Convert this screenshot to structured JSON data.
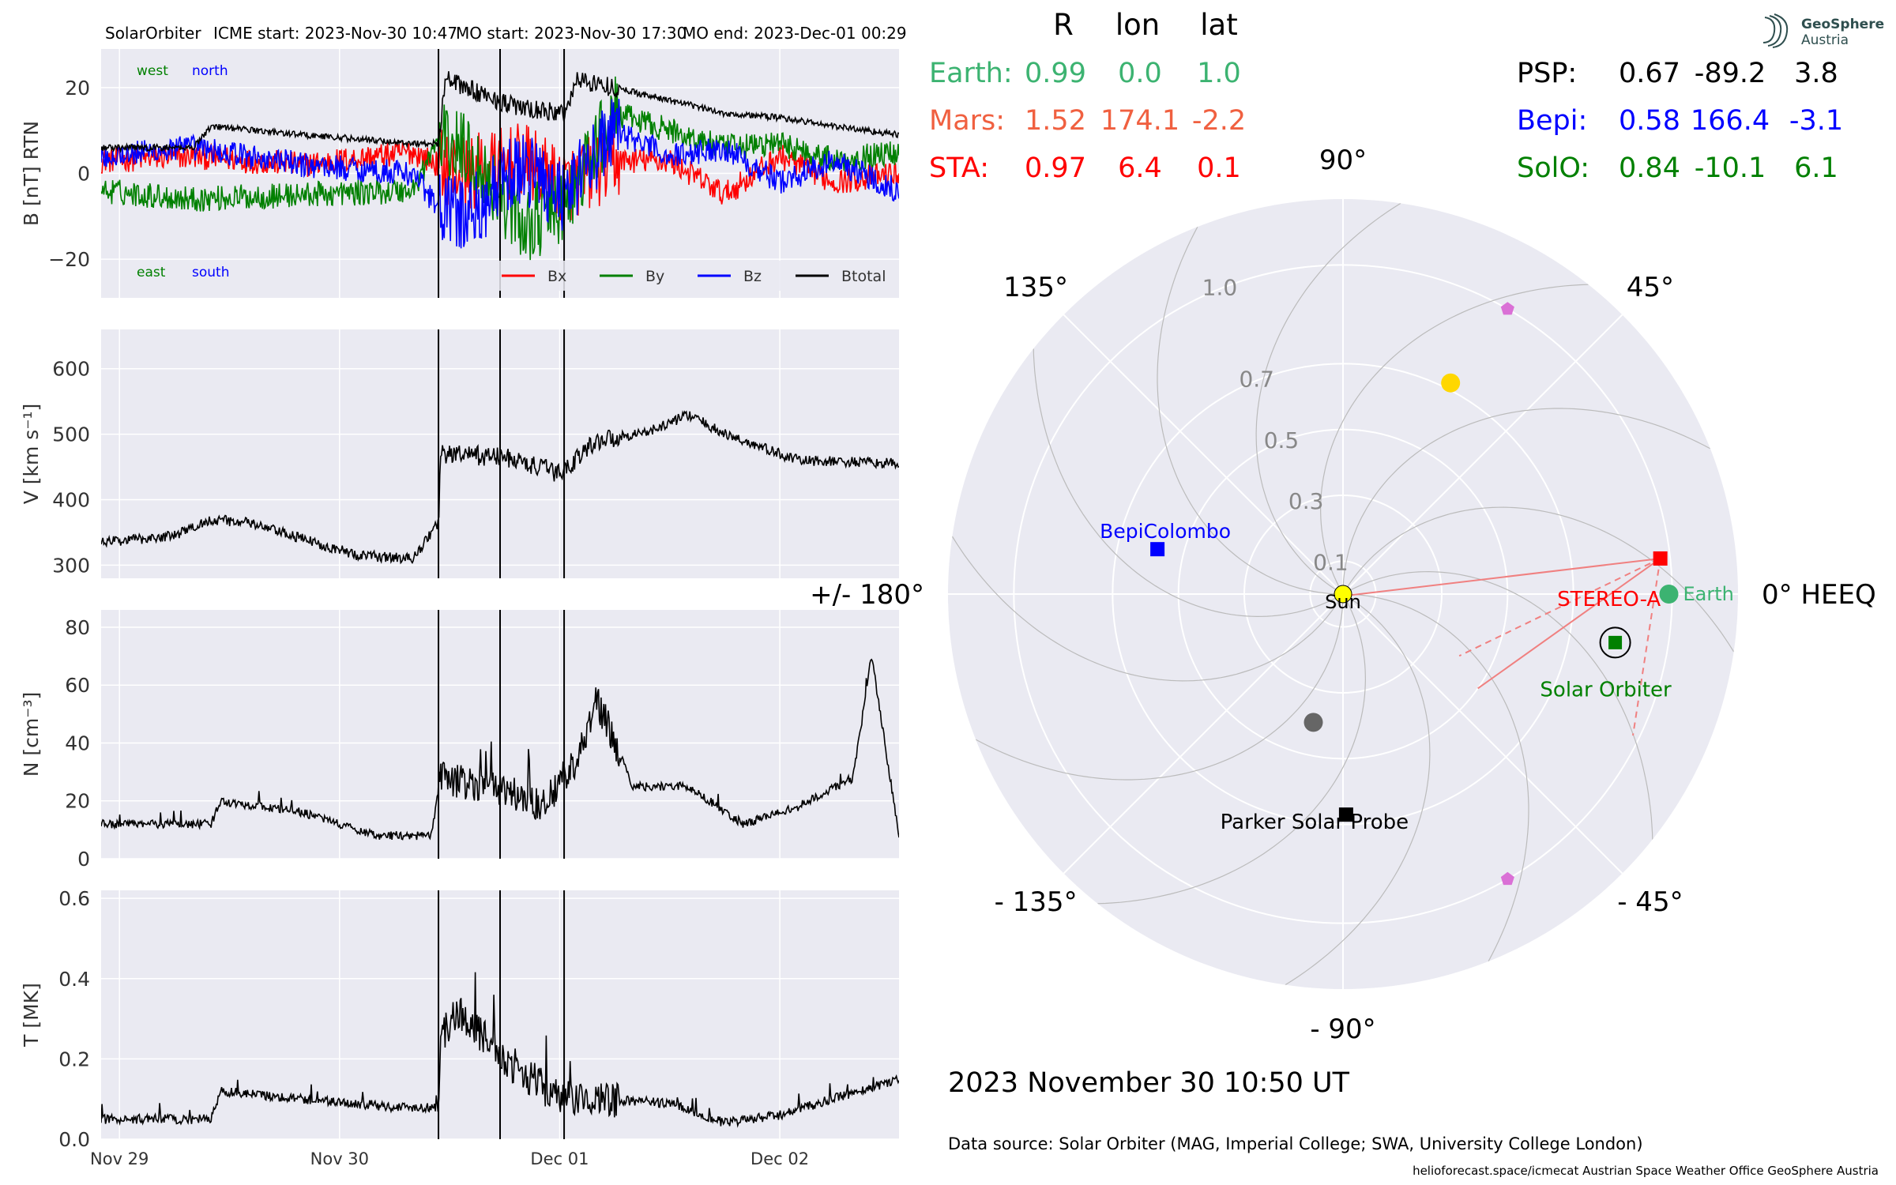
{
  "header": {
    "spacecraft": "SolarOrbiter",
    "icme_start": "ICME start: 2023-Nov-30 10:47",
    "mo_start": "MO start: 2023-Nov-30 17:30",
    "mo_end": "MO end: 2023-Dec-01 00:29"
  },
  "logo": {
    "line1": "GeoSphere",
    "line2": "Austria"
  },
  "footer": {
    "timestamp": "2023 November 30  10:50 UT",
    "source": "Data source: Solar Orbiter (MAG, Imperial College; SWA, University College London)",
    "credits": "helioforecast.space/icmecat   Austrian Space Weather Office   GeoSphere Austria"
  },
  "colors": {
    "earth": "#3cb371",
    "mars": "#f06040",
    "sta": "#ff0000",
    "psp": "#000000",
    "bepi": "#0000ff",
    "solo": "#008000",
    "panel_bg": "#eaeaf2",
    "grid": "#ffffff",
    "bx": "#ff0000",
    "by": "#008000",
    "bz": "#0000ff",
    "btotal": "#000000",
    "venus": "#ffd700",
    "mercury": "#666666",
    "l5": "#da70d6"
  },
  "positions_table": {
    "headers": [
      "R",
      "lon",
      "lat"
    ],
    "left": [
      {
        "name": "Earth:",
        "r": "0.99",
        "lon": "0.0",
        "lat": "1.0",
        "color": "#3cb371"
      },
      {
        "name": "Mars:",
        "r": "1.52",
        "lon": "174.1",
        "lat": "-2.2",
        "color": "#f06040"
      },
      {
        "name": "STA:",
        "r": "0.97",
        "lon": "6.4",
        "lat": "0.1",
        "color": "#ff0000"
      }
    ],
    "right": [
      {
        "name": "PSP:",
        "r": "0.67",
        "lon": "-89.2",
        "lat": "3.8",
        "color": "#000000"
      },
      {
        "name": "Bepi:",
        "r": "0.58",
        "lon": "166.4",
        "lat": "-3.1",
        "color": "#0000ff"
      },
      {
        "name": "SolO:",
        "r": "0.84",
        "lon": "-10.1",
        "lat": "6.1",
        "color": "#008000"
      }
    ]
  },
  "chart_data": [
    {
      "type": "line",
      "ylabel": "B [nT] RTN",
      "ylim": [
        -29,
        29
      ],
      "yticks": [
        -20,
        0,
        20
      ],
      "ytick_labels": [
        "−20",
        "0",
        "20"
      ],
      "xlim": [
        "2023-11-28 22:00",
        "2023-12-02 13:00"
      ],
      "xticks": [
        "2023-11-29",
        "2023-11-30",
        "2023-12-01",
        "2023-12-02"
      ],
      "xtick_labels": [
        "Nov 29",
        "Nov 30",
        "Dec 01",
        "Dec 02"
      ],
      "vlines": [
        "2023-11-30 10:47",
        "2023-11-30 17:30",
        "2023-12-01 00:29"
      ],
      "annotations": [
        "west",
        "north",
        "east",
        "south"
      ],
      "legend": "bottom-right",
      "series": [
        {
          "name": "Bx",
          "color": "#ff0000",
          "x": [
            "2023-11-28 22:00",
            "2023-11-29 08:00",
            "2023-11-29 20:00",
            "2023-11-30 08:00",
            "2023-11-30 10:47",
            "2023-11-30 14:00",
            "2023-11-30 20:00",
            "2023-12-01 00:29",
            "2023-12-01 06:00",
            "2023-12-01 12:00",
            "2023-12-01 18:00",
            "2023-12-02 00:00",
            "2023-12-02 06:00",
            "2023-12-02 13:00"
          ],
          "y": [
            3,
            4,
            2,
            5,
            2,
            0,
            3,
            -3,
            3,
            3,
            -5,
            4,
            -2,
            0
          ]
        },
        {
          "name": "By",
          "color": "#008000",
          "x": [
            "2023-11-28 22:00",
            "2023-11-29 08:00",
            "2023-11-29 20:00",
            "2023-11-30 08:00",
            "2023-11-30 10:47",
            "2023-11-30 14:00",
            "2023-11-30 20:00",
            "2023-12-01 00:29",
            "2023-12-01 06:00",
            "2023-12-01 12:00",
            "2023-12-01 18:00",
            "2023-12-02 00:00",
            "2023-12-02 06:00",
            "2023-12-02 13:00"
          ],
          "y": [
            -4,
            -6,
            -5,
            -4,
            8,
            5,
            -12,
            -8,
            14,
            10,
            6,
            7,
            3,
            5
          ]
        },
        {
          "name": "Bz",
          "color": "#0000ff",
          "x": [
            "2023-11-28 22:00",
            "2023-11-29 08:00",
            "2023-11-29 20:00",
            "2023-11-30 08:00",
            "2023-11-30 10:47",
            "2023-11-30 14:00",
            "2023-11-30 20:00",
            "2023-12-01 00:29",
            "2023-12-01 06:00",
            "2023-12-01 12:00",
            "2023-12-01 18:00",
            "2023-12-02 00:00",
            "2023-12-02 06:00",
            "2023-12-02 13:00"
          ],
          "y": [
            4,
            6,
            2,
            0,
            -8,
            -10,
            2,
            -5,
            10,
            4,
            6,
            -2,
            3,
            -4
          ]
        },
        {
          "name": "Btotal",
          "color": "#000000",
          "x": [
            "2023-11-28 22:00",
            "2023-11-29 08:00",
            "2023-11-29 10:00",
            "2023-11-29 20:00",
            "2023-11-30 08:00",
            "2023-11-30 10:47",
            "2023-11-30 11:30",
            "2023-11-30 16:00",
            "2023-11-30 20:00",
            "2023-12-01 00:29",
            "2023-12-01 02:00",
            "2023-12-01 06:00",
            "2023-12-01 12:00",
            "2023-12-01 18:00",
            "2023-12-02 00:00",
            "2023-12-02 06:00",
            "2023-12-02 13:00"
          ],
          "y": [
            6,
            6,
            11,
            9,
            7,
            7,
            22,
            18,
            15,
            14,
            22,
            20,
            17,
            14,
            13,
            11,
            9
          ]
        }
      ]
    },
    {
      "type": "line",
      "ylabel": "V [km s⁻¹]",
      "ylim": [
        280,
        660
      ],
      "yticks": [
        300,
        400,
        500,
        600
      ],
      "series": [
        {
          "name": "",
          "color": "#000000",
          "x": [
            "2023-11-28 22:00",
            "2023-11-29 06:00",
            "2023-11-29 10:00",
            "2023-11-29 14:00",
            "2023-11-29 20:00",
            "2023-11-30 02:00",
            "2023-11-30 08:00",
            "2023-11-30 10:47",
            "2023-11-30 11:00",
            "2023-11-30 18:00",
            "2023-12-01 00:00",
            "2023-12-01 04:00",
            "2023-12-01 10:00",
            "2023-12-01 14:00",
            "2023-12-01 18:00",
            "2023-12-02 02:00",
            "2023-12-02 13:00"
          ],
          "y": [
            335,
            345,
            370,
            365,
            340,
            315,
            310,
            365,
            470,
            465,
            440,
            490,
            505,
            530,
            500,
            460,
            455
          ]
        }
      ]
    },
    {
      "type": "line",
      "ylabel": "N [cm⁻³]",
      "ylim": [
        0,
        86
      ],
      "yticks": [
        0,
        20,
        40,
        60,
        80
      ],
      "series": [
        {
          "name": "",
          "color": "#000000",
          "x": [
            "2023-11-28 22:00",
            "2023-11-29 10:00",
            "2023-11-29 11:00",
            "2023-11-29 20:00",
            "2023-11-30 04:00",
            "2023-11-30 10:00",
            "2023-11-30 11:00",
            "2023-11-30 18:00",
            "2023-11-30 22:00",
            "2023-12-01 02:00",
            "2023-12-01 04:00",
            "2023-12-01 08:00",
            "2023-12-01 14:00",
            "2023-12-01 20:00",
            "2023-12-02 02:00",
            "2023-12-02 08:00",
            "2023-12-02 10:00",
            "2023-12-02 13:00"
          ],
          "y": [
            12,
            12,
            20,
            16,
            8,
            8,
            28,
            24,
            18,
            35,
            55,
            25,
            25,
            12,
            18,
            28,
            70,
            8
          ]
        }
      ]
    },
    {
      "type": "line",
      "ylabel": "T [MK]",
      "ylim": [
        0,
        0.62
      ],
      "yticks": [
        0.0,
        0.2,
        0.4,
        0.6
      ],
      "ytick_labels": [
        "0.0",
        "0.2",
        "0.4",
        "0.6"
      ],
      "series": [
        {
          "name": "",
          "color": "#000000",
          "x": [
            "2023-11-28 22:00",
            "2023-11-29 10:00",
            "2023-11-29 11:00",
            "2023-11-29 20:00",
            "2023-11-30 06:00",
            "2023-11-30 10:47",
            "2023-11-30 11:00",
            "2023-11-30 13:00",
            "2023-11-30 18:00",
            "2023-12-01 00:00",
            "2023-12-01 04:00",
            "2023-12-01 12:00",
            "2023-12-01 18:00",
            "2023-12-02 00:00",
            "2023-12-02 13:00"
          ],
          "y": [
            0.05,
            0.05,
            0.12,
            0.1,
            0.08,
            0.08,
            0.25,
            0.32,
            0.2,
            0.1,
            0.1,
            0.09,
            0.04,
            0.06,
            0.15
          ]
        }
      ]
    },
    {
      "type": "scatter",
      "projection": "polar",
      "rlim": [
        0,
        1.2
      ],
      "rticks": [
        0.1,
        0.3,
        0.5,
        0.7,
        1.0
      ],
      "rtick_labels": [
        "0.1",
        "0.3",
        "0.5",
        "0.7",
        "1.0"
      ],
      "theta_labels": [
        {
          "deg": 0,
          "label": "0° HEEQ"
        },
        {
          "deg": 45,
          "label": "45°"
        },
        {
          "deg": 90,
          "label": "90°"
        },
        {
          "deg": 135,
          "label": "135°"
        },
        {
          "deg": 180,
          "label": "+/- 180°"
        },
        {
          "deg": -135,
          "label": "- 135°"
        },
        {
          "deg": -90,
          "label": "- 90°"
        },
        {
          "deg": -45,
          "label": "- 45°"
        }
      ],
      "bodies": [
        {
          "name": "Sun",
          "r": 0,
          "lon": 0,
          "marker": "circle",
          "color": "#ffff00",
          "label": "Sun"
        },
        {
          "name": "Earth",
          "r": 0.99,
          "lon": 0.0,
          "marker": "circle",
          "color": "#3cb371",
          "label": "Earth"
        },
        {
          "name": "STEREO-A",
          "r": 0.97,
          "lon": 6.4,
          "marker": "square",
          "color": "#ff0000",
          "label": "STEREO-A"
        },
        {
          "name": "Solar Orbiter",
          "r": 0.84,
          "lon": -10.1,
          "marker": "square",
          "color": "#008000",
          "label": "Solar Orbiter"
        },
        {
          "name": "BepiColombo",
          "r": 0.58,
          "lon": 166.4,
          "marker": "square",
          "color": "#0000ff",
          "label": "BepiColombo"
        },
        {
          "name": "Parker Solar Probe",
          "r": 0.67,
          "lon": -89.2,
          "marker": "square",
          "color": "#000000",
          "label": "Parker Solar Probe"
        },
        {
          "name": "Venus",
          "r": 0.72,
          "lon": 63,
          "marker": "circle",
          "color": "#ffd700",
          "label": ""
        },
        {
          "name": "Mercury",
          "r": 0.4,
          "lon": -103,
          "marker": "circle",
          "color": "#666666",
          "label": ""
        },
        {
          "name": "L4",
          "r": 1.0,
          "lon": 60,
          "marker": "pentagon",
          "color": "#da70d6",
          "label": ""
        },
        {
          "name": "L5",
          "r": 1.0,
          "lon": -60,
          "marker": "pentagon",
          "color": "#da70d6",
          "label": ""
        }
      ]
    }
  ]
}
